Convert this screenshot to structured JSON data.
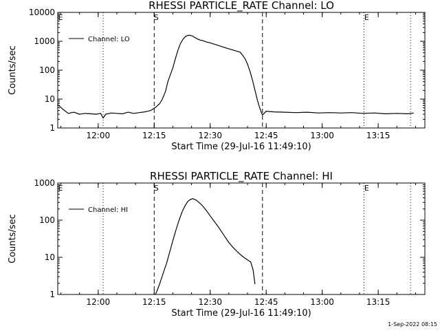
{
  "footer": {
    "timestamp": "1-Sep-2022 08:15"
  },
  "chart_data": [
    {
      "type": "line",
      "title": "RHESSI PARTICLE_RATE Channel: LO",
      "xlabel": "Start Time (29-Jul-16 11:49:10)",
      "ylabel": "Counts/sec",
      "y_scale": "log",
      "xlim": [
        "11:49:10",
        "13:27:30"
      ],
      "ylim": [
        1,
        10000
      ],
      "x_ticks": [
        "12:00",
        "12:15",
        "12:30",
        "12:45",
        "13:00",
        "13:15"
      ],
      "y_ticks": [
        "1",
        "10",
        "100",
        "1000",
        "10000"
      ],
      "markers": {
        "start": "S",
        "end": "E"
      },
      "dashed_lines": [
        "12:15:00",
        "12:44:00"
      ],
      "dotted_lines": [
        "12:01:20",
        "13:11:10",
        "13:23:40"
      ],
      "legend": {
        "position": "top-left",
        "entries": [
          "Channel: LO"
        ]
      },
      "series": [
        {
          "name": "Channel: LO",
          "x": [
            "11:49:10",
            "11:50:30",
            "11:52:00",
            "11:53:30",
            "11:55:00",
            "11:56:30",
            "11:58:00",
            "11:59:30",
            "12:00:40",
            "12:01:20",
            "12:02:00",
            "12:03:30",
            "12:05:00",
            "12:06:30",
            "12:08:00",
            "12:09:30",
            "12:11:00",
            "12:12:30",
            "12:14:00",
            "12:15:00",
            "12:15:40",
            "12:16:30",
            "12:17:10",
            "12:18:00",
            "12:18:40",
            "12:19:30",
            "12:20:00",
            "12:20:40",
            "12:21:20",
            "12:22:00",
            "12:22:40",
            "12:23:20",
            "12:24:00",
            "12:24:40",
            "12:25:20",
            "12:26:00",
            "12:26:40",
            "12:27:20",
            "12:28:00",
            "12:29:00",
            "12:30:00",
            "12:31:00",
            "12:32:00",
            "12:33:00",
            "12:34:00",
            "12:35:00",
            "12:36:00",
            "12:37:00",
            "12:38:00",
            "12:38:40",
            "12:39:20",
            "12:40:00",
            "12:40:40",
            "12:41:20",
            "12:42:00",
            "12:42:40",
            "12:43:10",
            "12:43:40",
            "12:44:00",
            "12:45:00",
            "12:47:00",
            "12:50:00",
            "12:53:00",
            "12:56:00",
            "12:59:00",
            "13:02:00",
            "13:05:00",
            "13:08:00",
            "13:11:00",
            "13:14:00",
            "13:17:00",
            "13:20:00",
            "13:23:00",
            "13:24:30"
          ],
          "y": [
            6.5,
            4.5,
            3.2,
            3.5,
            3.0,
            3.2,
            3.1,
            3.0,
            3.2,
            2.2,
            3.0,
            3.3,
            3.2,
            3.1,
            3.5,
            3.2,
            3.4,
            3.6,
            4.0,
            4.8,
            5.6,
            7.0,
            10,
            18,
            40,
            80,
            120,
            250,
            480,
            820,
            1150,
            1450,
            1600,
            1600,
            1500,
            1320,
            1200,
            1100,
            1050,
            950,
            880,
            800,
            730,
            660,
            600,
            550,
            500,
            460,
            420,
            330,
            250,
            160,
            90,
            45,
            20,
            9,
            5.5,
            3.5,
            2.8,
            3.8,
            3.6,
            3.5,
            3.4,
            3.5,
            3.3,
            3.4,
            3.3,
            3.4,
            3.2,
            3.3,
            3.1,
            3.2,
            3.1,
            3.3
          ]
        }
      ]
    },
    {
      "type": "line",
      "title": "RHESSI PARTICLE_RATE Channel: HI",
      "xlabel": "Start Time (29-Jul-16 11:49:10)",
      "ylabel": "Counts/sec",
      "y_scale": "log",
      "xlim": [
        "11:49:10",
        "13:27:30"
      ],
      "ylim": [
        1,
        1000
      ],
      "x_ticks": [
        "12:00",
        "12:15",
        "12:30",
        "12:45",
        "13:00",
        "13:15"
      ],
      "y_ticks": [
        "1",
        "10",
        "100",
        "1000"
      ],
      "markers": {
        "start": "S",
        "end": "E"
      },
      "dashed_lines": [
        "12:15:00",
        "12:44:00"
      ],
      "dotted_lines": [
        "12:01:20",
        "13:11:10",
        "13:23:40"
      ],
      "legend": {
        "position": "top-left",
        "entries": [
          "Channel: HI"
        ]
      },
      "series": [
        {
          "name": "Channel: HI",
          "x": [
            "12:15:20",
            "12:15:50",
            "12:16:40",
            "12:17:30",
            "12:18:20",
            "12:19:10",
            "12:20:00",
            "12:20:50",
            "12:21:40",
            "12:22:30",
            "12:23:20",
            "12:24:00",
            "12:24:40",
            "12:25:20",
            "12:26:10",
            "12:27:00",
            "12:28:00",
            "12:29:00",
            "12:30:00",
            "12:31:00",
            "12:32:00",
            "12:33:00",
            "12:34:00",
            "12:35:00",
            "12:36:00",
            "12:37:00",
            "12:38:00",
            "12:39:00",
            "12:40:00",
            "12:40:50",
            "12:41:30",
            "12:42:00"
          ],
          "y": [
            1,
            1.3,
            2.2,
            4,
            7,
            14,
            28,
            55,
            100,
            170,
            250,
            320,
            360,
            380,
            350,
            300,
            240,
            180,
            130,
            95,
            70,
            50,
            35,
            25,
            19,
            15,
            12,
            10,
            8.5,
            7.5,
            4.5,
            1.9
          ]
        }
      ]
    }
  ]
}
